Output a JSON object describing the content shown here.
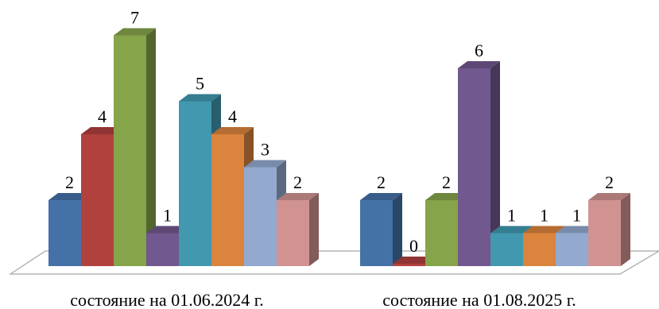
{
  "chart_data": {
    "type": "bar",
    "style": "3d-clustered-columns",
    "categories": [
      "состояние на 01.06.2024 г.",
      "состояние на 01.08.2025 г."
    ],
    "series": [
      {
        "values": [
          2,
          2
        ],
        "color": "#4472A8"
      },
      {
        "values": [
          4,
          0
        ],
        "color": "#B0413E"
      },
      {
        "values": [
          7,
          2
        ],
        "color": "#86A44A"
      },
      {
        "values": [
          1,
          6
        ],
        "color": "#71588F"
      },
      {
        "values": [
          5,
          1
        ],
        "color": "#4198AF"
      },
      {
        "values": [
          4,
          1
        ],
        "color": "#DB843D"
      },
      {
        "values": [
          3,
          1
        ],
        "color": "#93A9CF"
      },
      {
        "values": [
          2,
          2
        ],
        "color": "#D19392"
      }
    ],
    "data_labels": true,
    "ylim": [
      0,
      7
    ],
    "grid": false,
    "legend": "none",
    "title": "",
    "xlabel": "",
    "ylabel": ""
  }
}
